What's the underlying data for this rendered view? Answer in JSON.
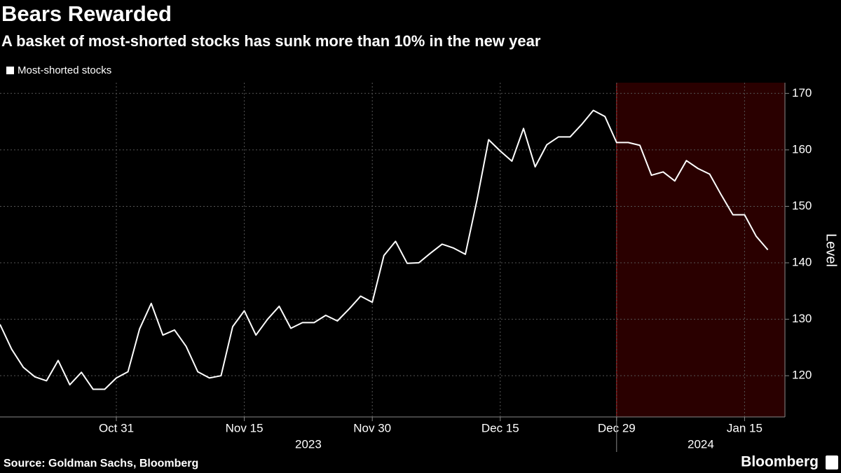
{
  "chart_data": {
    "type": "line",
    "title": "Bears Rewarded",
    "subtitle": "A basket of most-shorted stocks has sunk more than 10% in the new year",
    "categories": [
      null,
      null,
      null,
      null,
      null,
      null,
      null,
      null,
      null,
      null,
      "Oct 31",
      null,
      null,
      null,
      null,
      null,
      null,
      null,
      null,
      null,
      null,
      "Nov 15",
      null,
      null,
      null,
      null,
      null,
      null,
      null,
      null,
      null,
      null,
      "Nov 30",
      null,
      null,
      null,
      null,
      null,
      null,
      null,
      null,
      null,
      null,
      "Dec 15",
      null,
      null,
      null,
      null,
      null,
      null,
      null,
      null,
      null,
      "Dec 29",
      null,
      null,
      null,
      null,
      null,
      null,
      null,
      null,
      null,
      null,
      "Jan 15",
      null,
      null
    ],
    "year_labels": [
      "2023",
      "2024"
    ],
    "series": [
      {
        "name": "Most-shorted stocks",
        "color": "#ffffff",
        "values": [
          129.1,
          124.7,
          121.5,
          119.8,
          119.1,
          122.7,
          118.4,
          120.6,
          117.6,
          117.6,
          119.6,
          120.7,
          128.3,
          132.8,
          127.2,
          128.1,
          125.2,
          120.7,
          119.6,
          120.0,
          128.7,
          131.5,
          127.2,
          130.0,
          132.3,
          128.4,
          129.4,
          129.4,
          130.7,
          129.7,
          131.8,
          134.1,
          133.0,
          141.3,
          143.8,
          139.9,
          140.0,
          141.7,
          143.3,
          142.6,
          141.5,
          151.1,
          161.8,
          159.8,
          158.0,
          163.8,
          157.0,
          160.9,
          162.3,
          162.3,
          164.5,
          167.0,
          165.9,
          161.3,
          161.3,
          160.8,
          155.5,
          156.1,
          154.5,
          158.1,
          156.7,
          155.7,
          152.0,
          148.5,
          148.5,
          144.7,
          142.3
        ]
      }
    ],
    "highlight": {
      "start": "Dec 29",
      "color": "#2a0000",
      "edge_color": "#b22222"
    },
    "ylabel": "Level",
    "ylim": [
      112.7,
      171.9
    ],
    "yticks": [
      120,
      130,
      140,
      150,
      160,
      170
    ],
    "grid": true,
    "source": "Source: Goldman Sachs, Bloomberg",
    "brand": "Bloomberg"
  }
}
